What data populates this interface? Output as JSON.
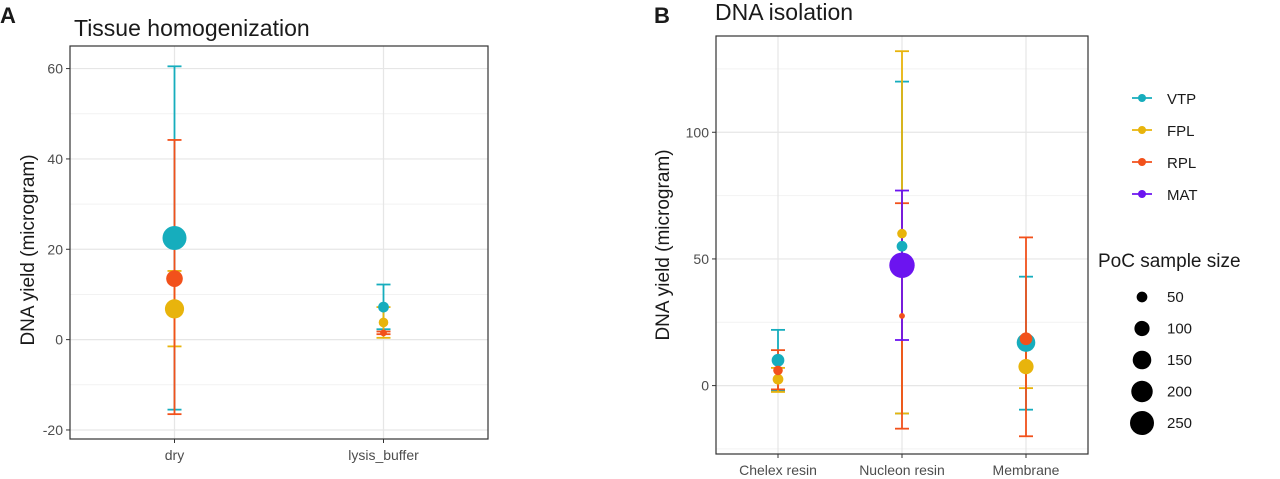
{
  "colors": {
    "VTP": "#16adbd",
    "FPL": "#e8b40c",
    "RPL": "#f2511b",
    "MAT": "#6c14f0",
    "grid_major": "#e6e6e6",
    "grid_minor": "#f2f2f2",
    "text": "#1a1a1a",
    "tick_text": "#4d4d4d"
  },
  "chart_data": [
    {
      "type": "scatter",
      "panel_label": "A",
      "title": "Tissue homogenization",
      "xlabel": "",
      "ylabel": "DNA yield (microgram)",
      "categories": [
        "dry",
        "lysis_buffer"
      ],
      "ylim": [
        -22,
        65
      ],
      "yticks": [
        -20,
        0,
        20,
        40,
        60
      ],
      "ytick_labels": [
        "-20",
        "0",
        "20",
        "40",
        "60"
      ],
      "grid": true,
      "points": [
        {
          "group": "VTP",
          "category": "dry",
          "mean": 22.5,
          "lower": -15.5,
          "upper": 60.5,
          "n": 250
        },
        {
          "group": "FPL",
          "category": "dry",
          "mean": 6.8,
          "lower": -1.5,
          "upper": 15.2,
          "n": 160
        },
        {
          "group": "RPL",
          "category": "dry",
          "mean": 13.5,
          "lower": -16.5,
          "upper": 44.2,
          "n": 120
        },
        {
          "group": "VTP",
          "category": "lysis_buffer",
          "mean": 7.2,
          "lower": 2.3,
          "upper": 12.2,
          "n": 50
        },
        {
          "group": "FPL",
          "category": "lysis_buffer",
          "mean": 3.8,
          "lower": 0.4,
          "upper": 7.2,
          "n": 40
        },
        {
          "group": "RPL",
          "category": "lysis_buffer",
          "mean": 1.5,
          "lower": 1.2,
          "upper": 1.8,
          "n": 20
        }
      ]
    },
    {
      "type": "scatter",
      "panel_label": "B",
      "title": "DNA isolation",
      "xlabel": "",
      "ylabel": "DNA yield (microgram)",
      "categories": [
        "Chelex resin",
        "Nucleon resin",
        "Membrane"
      ],
      "ylim": [
        -27,
        138
      ],
      "yticks": [
        0,
        50,
        100
      ],
      "ytick_labels": [
        "0",
        "50",
        "100"
      ],
      "grid": true,
      "points": [
        {
          "group": "VTP",
          "category": "Chelex resin",
          "mean": 10,
          "lower": -2,
          "upper": 22,
          "n": 70
        },
        {
          "group": "FPL",
          "category": "Chelex resin",
          "mean": 2.5,
          "lower": -2.5,
          "upper": 7,
          "n": 50
        },
        {
          "group": "RPL",
          "category": "Chelex resin",
          "mean": 6,
          "lower": -1.5,
          "upper": 14,
          "n": 40
        },
        {
          "group": "VTP",
          "category": "Nucleon resin",
          "mean": 55,
          "lower": -11,
          "upper": 120,
          "n": 50
        },
        {
          "group": "FPL",
          "category": "Nucleon resin",
          "mean": 60,
          "lower": -11,
          "upper": 132,
          "n": 40
        },
        {
          "group": "RPL",
          "category": "Nucleon resin",
          "mean": 27.5,
          "lower": -17,
          "upper": 72,
          "n": 15
        },
        {
          "group": "MAT",
          "category": "Nucleon resin",
          "mean": 47.5,
          "lower": 18,
          "upper": 77,
          "n": 280
        },
        {
          "group": "VTP",
          "category": "Membrane",
          "mean": 17,
          "lower": -9.5,
          "upper": 43,
          "n": 150
        },
        {
          "group": "FPL",
          "category": "Membrane",
          "mean": 7.5,
          "lower": -1,
          "upper": 16,
          "n": 100
        },
        {
          "group": "RPL",
          "category": "Membrane",
          "mean": 18.5,
          "lower": -20,
          "upper": 58.5,
          "n": 70
        }
      ]
    }
  ],
  "legend": {
    "placement": "right",
    "groups": [
      "VTP",
      "FPL",
      "RPL",
      "MAT"
    ],
    "size_title": "PoC sample size",
    "sizes": [
      50,
      100,
      150,
      200,
      250
    ],
    "size_labels": [
      "50",
      "100",
      "150",
      "200",
      "250"
    ]
  }
}
